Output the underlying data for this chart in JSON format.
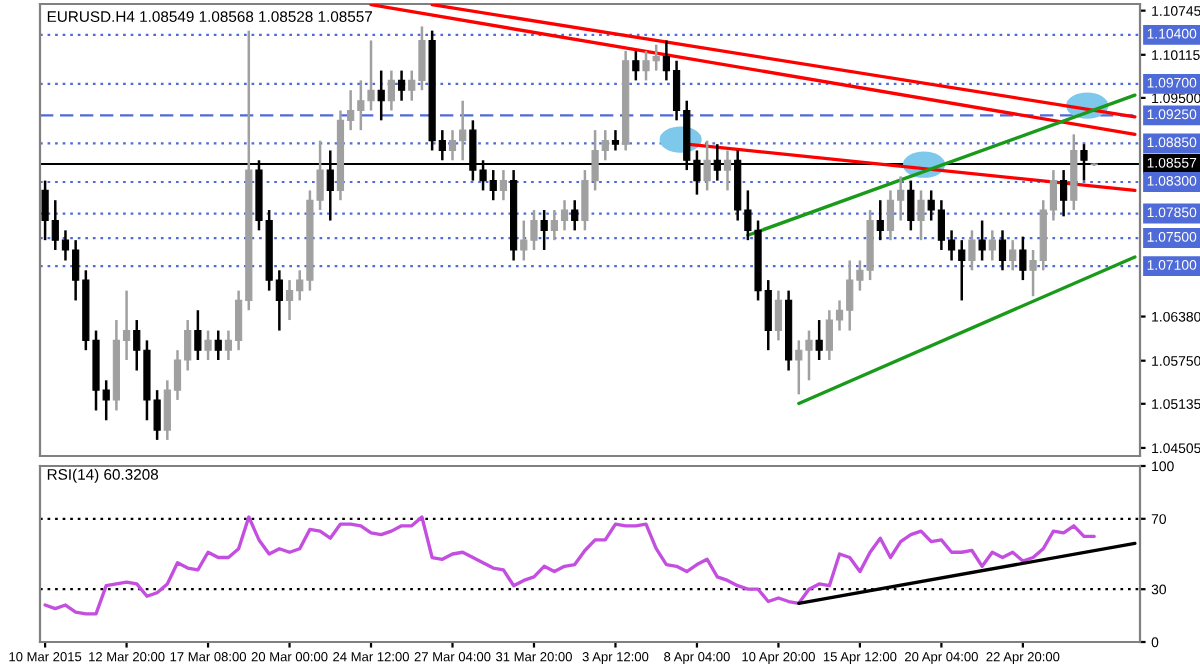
{
  "chart_data": [
    {
      "type": "candlestick",
      "title": "EURUSD.H4 1.08549 1.08568 1.08528 1.08557",
      "categories": [
        null,
        null,
        null,
        null,
        null,
        null,
        null,
        null,
        null,
        null,
        null,
        null,
        null,
        null,
        null,
        null,
        null,
        null,
        null,
        null,
        null,
        null,
        null,
        null,
        null,
        null,
        null,
        null,
        null,
        null,
        null,
        null,
        null,
        null,
        null,
        null,
        null,
        null,
        null,
        null,
        null,
        null,
        null,
        null,
        null,
        null,
        null,
        null,
        null,
        null,
        null,
        null,
        null,
        null,
        null,
        null,
        null,
        null,
        null,
        null,
        null,
        null,
        null,
        null,
        null,
        null,
        null,
        null,
        null,
        null,
        null,
        null,
        null,
        null,
        null,
        null,
        null,
        null,
        null,
        null,
        null,
        null,
        null,
        null,
        null,
        null,
        null,
        null,
        null,
        null,
        null,
        null,
        null,
        null,
        null,
        null,
        null,
        null,
        null,
        null,
        null,
        null,
        null,
        null,
        null,
        null,
        null,
        null
      ],
      "ohlc": [
        [
          1.0818,
          1.0832,
          1.0747,
          1.0775
        ],
        [
          1.0775,
          1.0804,
          1.0733,
          1.0747
        ],
        [
          1.0747,
          1.0761,
          1.0718,
          1.0733
        ],
        [
          1.0733,
          1.0747,
          1.0661,
          1.069
        ],
        [
          1.069,
          1.0704,
          1.059,
          1.0604
        ],
        [
          1.0604,
          1.0618,
          1.0504,
          1.0533
        ],
        [
          1.0533,
          1.0547,
          1.049,
          1.0519
        ],
        [
          1.0519,
          1.0633,
          1.0504,
          1.0604
        ],
        [
          1.0604,
          1.0675,
          1.0576,
          1.0618
        ],
        [
          1.0618,
          1.0633,
          1.0561,
          1.059
        ],
        [
          1.059,
          1.0604,
          1.049,
          1.0519
        ],
        [
          1.0519,
          1.0533,
          1.0462,
          1.0476
        ],
        [
          1.0476,
          1.0547,
          1.0462,
          1.0533
        ],
        [
          1.0533,
          1.059,
          1.0519,
          1.0576
        ],
        [
          1.0576,
          1.0633,
          1.0561,
          1.0618
        ],
        [
          1.0618,
          1.0647,
          1.0576,
          1.059
        ],
        [
          1.059,
          1.0618,
          1.0576,
          1.0604
        ],
        [
          1.0604,
          1.0618,
          1.0576,
          1.059
        ],
        [
          1.059,
          1.0618,
          1.0576,
          1.0604
        ],
        [
          1.0604,
          1.0675,
          1.059,
          1.0661
        ],
        [
          1.0661,
          1.1046,
          1.0647,
          1.0847
        ],
        [
          1.0847,
          1.0861,
          1.0761,
          1.0775
        ],
        [
          1.0775,
          1.079,
          1.0675,
          1.069
        ],
        [
          1.069,
          1.0704,
          1.0618,
          1.0661
        ],
        [
          1.0661,
          1.069,
          1.0633,
          1.0675
        ],
        [
          1.0675,
          1.0704,
          1.0661,
          1.069
        ],
        [
          1.069,
          1.0818,
          1.0675,
          1.0804
        ],
        [
          1.0804,
          1.0889,
          1.079,
          1.0847
        ],
        [
          1.0847,
          1.0875,
          1.0775,
          1.0818
        ],
        [
          1.0818,
          1.0932,
          1.0804,
          1.0918
        ],
        [
          1.0918,
          1.0961,
          1.0904,
          1.0932
        ],
        [
          1.0932,
          1.0975,
          1.0904,
          1.0946
        ],
        [
          1.0946,
          1.1032,
          1.0932,
          1.0961
        ],
        [
          1.0961,
          1.0989,
          1.0918,
          1.0946
        ],
        [
          1.0946,
          1.0989,
          1.0932,
          1.0975
        ],
        [
          1.0975,
          1.0989,
          1.0946,
          1.0961
        ],
        [
          1.0961,
          1.0989,
          1.0946,
          1.0975
        ],
        [
          1.0975,
          1.1052,
          1.0961,
          1.1032
        ],
        [
          1.1032,
          1.1046,
          1.0875,
          1.0889
        ],
        [
          1.0889,
          1.0904,
          1.0861,
          1.0875
        ],
        [
          1.0875,
          1.0904,
          1.0861,
          1.0889
        ],
        [
          1.0889,
          1.0946,
          1.0861,
          1.0904
        ],
        [
          1.0904,
          1.0918,
          1.0832,
          1.0847
        ],
        [
          1.0847,
          1.0861,
          1.0818,
          1.0832
        ],
        [
          1.0832,
          1.0847,
          1.0804,
          1.0818
        ],
        [
          1.0818,
          1.0847,
          1.0804,
          1.0832
        ],
        [
          1.0832,
          1.0847,
          1.0718,
          1.0733
        ],
        [
          1.0733,
          1.0775,
          1.0718,
          1.0747
        ],
        [
          1.0747,
          1.079,
          1.0733,
          1.0775
        ],
        [
          1.0775,
          1.079,
          1.0733,
          1.0761
        ],
        [
          1.0761,
          1.079,
          1.0747,
          1.0775
        ],
        [
          1.0775,
          1.0804,
          1.0761,
          1.079
        ],
        [
          1.079,
          1.0804,
          1.0761,
          1.0775
        ],
        [
          1.0775,
          1.0847,
          1.0761,
          1.0832
        ],
        [
          1.0832,
          1.0904,
          1.0818,
          1.0875
        ],
        [
          1.0875,
          1.0904,
          1.0861,
          1.0889
        ],
        [
          1.0889,
          1.0904,
          1.0875,
          1.0884
        ],
        [
          1.0884,
          1.1017,
          1.0875,
          1.1003
        ],
        [
          1.1003,
          1.1017,
          1.0975,
          1.0989
        ],
        [
          1.0989,
          1.1017,
          1.0975,
          1.1003
        ],
        [
          1.1003,
          1.1026,
          1.0989,
          1.1009
        ],
        [
          1.1009,
          1.1032,
          1.0975,
          1.0989
        ],
        [
          1.0989,
          1.1003,
          1.0918,
          1.0932
        ],
        [
          1.0932,
          1.0946,
          1.0847,
          1.0861
        ],
        [
          1.0861,
          1.0875,
          1.0812,
          1.0832
        ],
        [
          1.0832,
          1.0889,
          1.0818,
          1.0861
        ],
        [
          1.0861,
          1.0884,
          1.0832,
          1.0847
        ],
        [
          1.0847,
          1.0875,
          1.0818,
          1.0861
        ],
        [
          1.0861,
          1.0875,
          1.0775,
          1.079
        ],
        [
          1.079,
          1.0818,
          1.0747,
          1.0761
        ],
        [
          1.0761,
          1.0775,
          1.0661,
          1.0675
        ],
        [
          1.0675,
          1.069,
          1.059,
          1.0618
        ],
        [
          1.0618,
          1.0675,
          1.0604,
          1.0661
        ],
        [
          1.0661,
          1.0675,
          1.0561,
          1.0576
        ],
        [
          1.0576,
          1.0604,
          1.0527,
          1.059
        ],
        [
          1.059,
          1.0618,
          1.0547,
          1.0604
        ],
        [
          1.0604,
          1.0633,
          1.0576,
          1.059
        ],
        [
          1.059,
          1.0647,
          1.0576,
          1.0633
        ],
        [
          1.0633,
          1.0661,
          1.0618,
          1.0647
        ],
        [
          1.0647,
          1.0718,
          1.0618,
          1.069
        ],
        [
          1.069,
          1.0718,
          1.0675,
          1.0704
        ],
        [
          1.0704,
          1.079,
          1.069,
          1.0775
        ],
        [
          1.0775,
          1.0804,
          1.0747,
          1.0761
        ],
        [
          1.0761,
          1.0818,
          1.0747,
          1.0804
        ],
        [
          1.0804,
          1.0838,
          1.0775,
          1.0818
        ],
        [
          1.0818,
          1.0832,
          1.0761,
          1.0775
        ],
        [
          1.0775,
          1.0818,
          1.0747,
          1.0804
        ],
        [
          1.0804,
          1.0818,
          1.0775,
          1.079
        ],
        [
          1.079,
          1.0804,
          1.0733,
          1.0747
        ],
        [
          1.0747,
          1.0761,
          1.0718,
          1.0733
        ],
        [
          1.0733,
          1.0747,
          1.0661,
          1.0718
        ],
        [
          1.0718,
          1.0761,
          1.0704,
          1.0747
        ],
        [
          1.0747,
          1.0775,
          1.0718,
          1.0733
        ],
        [
          1.0733,
          1.0761,
          1.0718,
          1.0747
        ],
        [
          1.0747,
          1.0761,
          1.0704,
          1.0718
        ],
        [
          1.0718,
          1.0747,
          1.0704,
          1.0733
        ],
        [
          1.0733,
          1.0752,
          1.069,
          1.0704
        ],
        [
          1.0704,
          1.0733,
          1.0667,
          1.0718
        ],
        [
          1.0718,
          1.0804,
          1.0704,
          1.079
        ],
        [
          1.079,
          1.0847,
          1.0775,
          1.0832
        ],
        [
          1.0832,
          1.0847,
          1.0781,
          1.0804
        ],
        [
          1.0804,
          1.0898,
          1.079,
          1.0875
        ],
        [
          1.0875,
          1.0884,
          1.0832,
          1.0861
        ],
        [
          1.08549,
          1.08568,
          1.08528,
          1.08557
        ],
        null,
        null,
        null,
        null
      ],
      "colors": [
        "#000000",
        "#000000",
        "#000000",
        "#000000",
        "#000000",
        "#000000",
        "#000000",
        "#a0a0a0",
        "#a0a0a0",
        "#000000",
        "#000000",
        "#000000",
        "#a0a0a0",
        "#a0a0a0",
        "#a0a0a0",
        "#000000",
        "#a0a0a0",
        "#000000",
        "#a0a0a0",
        "#a0a0a0",
        "#a0a0a0",
        "#000000",
        "#000000",
        "#000000",
        "#a0a0a0",
        "#a0a0a0",
        "#a0a0a0",
        "#a0a0a0",
        "#000000",
        "#a0a0a0",
        "#a0a0a0",
        "#a0a0a0",
        "#a0a0a0",
        "#000000",
        "#a0a0a0",
        "#000000",
        "#a0a0a0",
        "#a0a0a0",
        "#000000",
        "#000000",
        "#a0a0a0",
        "#a0a0a0",
        "#000000",
        "#000000",
        "#000000",
        "#a0a0a0",
        "#000000",
        "#a0a0a0",
        "#a0a0a0",
        "#000000",
        "#a0a0a0",
        "#a0a0a0",
        "#000000",
        "#a0a0a0",
        "#a0a0a0",
        "#a0a0a0",
        "#000000",
        "#a0a0a0",
        "#000000",
        "#a0a0a0",
        "#a0a0a0",
        "#000000",
        "#000000",
        "#000000",
        "#000000",
        "#a0a0a0",
        "#000000",
        "#a0a0a0",
        "#000000",
        "#000000",
        "#000000",
        "#000000",
        "#a0a0a0",
        "#000000",
        "#a0a0a0",
        "#a0a0a0",
        "#000000",
        "#a0a0a0",
        "#a0a0a0",
        "#a0a0a0",
        "#a0a0a0",
        "#a0a0a0",
        "#000000",
        "#a0a0a0",
        "#a0a0a0",
        "#000000",
        "#a0a0a0",
        "#000000",
        "#000000",
        "#000000",
        "#000000",
        "#a0a0a0",
        "#000000",
        "#a0a0a0",
        "#000000",
        "#a0a0a0",
        "#000000",
        "#a0a0a0",
        "#a0a0a0",
        "#a0a0a0",
        "#000000",
        "#a0a0a0",
        "#000000",
        "#a0a0a0",
        null,
        null,
        null,
        null
      ],
      "series": [
        {
          "type": "line",
          "color": "#ff0000",
          "values": [
            null,
            null,
            null,
            null,
            null,
            null,
            null,
            null,
            null,
            null,
            null,
            null,
            null,
            null,
            null,
            null,
            null,
            null,
            null,
            null,
            null,
            null,
            null,
            null,
            null,
            null,
            null,
            null,
            null,
            null,
            null,
            null,
            null,
            null,
            null,
            null,
            null,
            null,
            1.1083,
            null,
            null,
            null,
            null,
            null,
            null,
            null,
            null,
            null,
            null,
            null,
            null,
            null,
            null,
            null,
            null,
            null,
            null,
            null,
            null,
            null,
            null,
            null,
            null,
            null,
            null,
            null,
            null,
            null,
            null,
            null,
            null,
            null,
            null,
            null,
            null,
            null,
            null,
            null,
            null,
            null,
            null,
            null,
            null,
            null,
            null,
            null,
            null,
            null,
            null,
            null,
            null,
            null,
            null,
            null,
            null,
            null,
            null,
            null,
            null,
            null,
            null,
            null,
            null,
            null,
            null,
            null,
            null,
            1.0923
          ]
        },
        {
          "type": "line",
          "color": "#ff0000",
          "values": [
            null,
            null,
            null,
            null,
            null,
            null,
            null,
            null,
            null,
            null,
            null,
            null,
            null,
            null,
            null,
            null,
            null,
            null,
            null,
            null,
            null,
            null,
            null,
            null,
            null,
            null,
            null,
            null,
            null,
            null,
            null,
            null,
            1.1083,
            null,
            null,
            null,
            null,
            null,
            null,
            null,
            null,
            null,
            null,
            null,
            null,
            null,
            null,
            null,
            null,
            null,
            null,
            null,
            null,
            null,
            null,
            null,
            null,
            null,
            null,
            null,
            null,
            null,
            null,
            null,
            null,
            null,
            null,
            null,
            null,
            null,
            null,
            null,
            null,
            null,
            null,
            null,
            null,
            null,
            null,
            null,
            null,
            null,
            null,
            null,
            null,
            null,
            null,
            null,
            null,
            null,
            null,
            null,
            null,
            null,
            null,
            null,
            null,
            null,
            null,
            null,
            null,
            null,
            null,
            null,
            null,
            null,
            null,
            1.0898
          ]
        },
        {
          "type": "line",
          "color": "#ff0000",
          "values": [
            null,
            null,
            null,
            null,
            null,
            null,
            null,
            null,
            null,
            null,
            null,
            null,
            null,
            null,
            null,
            null,
            null,
            null,
            null,
            null,
            null,
            null,
            null,
            null,
            null,
            null,
            null,
            null,
            null,
            null,
            null,
            null,
            null,
            null,
            null,
            null,
            null,
            null,
            null,
            null,
            null,
            null,
            null,
            null,
            null,
            null,
            null,
            null,
            null,
            null,
            null,
            null,
            null,
            null,
            null,
            null,
            null,
            null,
            null,
            null,
            null,
            null,
            null,
            1.0884,
            null,
            null,
            null,
            null,
            null,
            null,
            null,
            null,
            null,
            null,
            null,
            null,
            null,
            null,
            null,
            null,
            null,
            null,
            null,
            null,
            null,
            null,
            null,
            null,
            null,
            null,
            null,
            null,
            null,
            null,
            null,
            null,
            null,
            null,
            null,
            null,
            null,
            null,
            null,
            null,
            null,
            null,
            null,
            1.0818
          ]
        },
        {
          "type": "line",
          "color": "#1a9a1a",
          "values": [
            null,
            null,
            null,
            null,
            null,
            null,
            null,
            null,
            null,
            null,
            null,
            null,
            null,
            null,
            null,
            null,
            null,
            null,
            null,
            null,
            null,
            null,
            null,
            null,
            null,
            null,
            null,
            null,
            null,
            null,
            null,
            null,
            null,
            null,
            null,
            null,
            null,
            null,
            null,
            null,
            null,
            null,
            null,
            null,
            null,
            null,
            null,
            null,
            null,
            null,
            null,
            null,
            null,
            null,
            null,
            null,
            null,
            null,
            null,
            null,
            null,
            null,
            null,
            null,
            null,
            null,
            null,
            null,
            null,
            1.0754,
            null,
            null,
            null,
            null,
            null,
            null,
            null,
            null,
            null,
            null,
            null,
            null,
            null,
            null,
            null,
            null,
            null,
            null,
            null,
            null,
            null,
            null,
            null,
            null,
            null,
            null,
            null,
            null,
            null,
            null,
            null,
            null,
            null,
            null,
            null,
            null,
            null,
            1.0954
          ]
        },
        {
          "type": "line",
          "color": "#1a9a1a",
          "values": [
            null,
            null,
            null,
            null,
            null,
            null,
            null,
            null,
            null,
            null,
            null,
            null,
            null,
            null,
            null,
            null,
            null,
            null,
            null,
            null,
            null,
            null,
            null,
            null,
            null,
            null,
            null,
            null,
            null,
            null,
            null,
            null,
            null,
            null,
            null,
            null,
            null,
            null,
            null,
            null,
            null,
            null,
            null,
            null,
            null,
            null,
            null,
            null,
            null,
            null,
            null,
            null,
            null,
            null,
            null,
            null,
            null,
            null,
            null,
            null,
            null,
            null,
            null,
            null,
            null,
            null,
            null,
            null,
            null,
            null,
            null,
            null,
            null,
            null,
            1.0514,
            null,
            null,
            null,
            null,
            null,
            null,
            null,
            null,
            null,
            null,
            null,
            null,
            null,
            null,
            null,
            null,
            null,
            null,
            null,
            null,
            null,
            null,
            null,
            null,
            null,
            null,
            null,
            null,
            null,
            null,
            null,
            null,
            1.0723
          ]
        }
      ],
      "ylim": [
        1.0439,
        1.1084
      ],
      "yticks": [
        {
          "value": 1.10745,
          "label": "1.10745"
        },
        {
          "value": 1.10115,
          "label": "1.10115"
        },
        {
          "value": 1.095,
          "label": "1.09500"
        },
        {
          "value": 1.0638,
          "label": "1.06380"
        },
        {
          "value": 1.0575,
          "label": "1.05750"
        },
        {
          "value": 1.05135,
          "label": "1.05135"
        },
        {
          "value": 1.04505,
          "label": "1.04505"
        }
      ],
      "ref_lines": [
        {
          "axis": "y",
          "value": 1.104,
          "label": "1.10400",
          "color": "#4f6bd8",
          "line_style": "dotted"
        },
        {
          "axis": "y",
          "value": 1.097,
          "label": "1.09700",
          "color": "#4f6bd8",
          "line_style": "dotted"
        },
        {
          "axis": "y",
          "value": 1.0925,
          "label": "1.09250",
          "color": "#4f6bd8",
          "line_style": "dashed"
        },
        {
          "axis": "y",
          "value": 1.0885,
          "label": "1.08850",
          "color": "#4f6bd8",
          "line_style": "dotted"
        },
        {
          "axis": "y",
          "value": 1.08557,
          "label": "1.08557",
          "color": "#000000",
          "line_style": "solid"
        },
        {
          "axis": "y",
          "value": 1.083,
          "label": "1.08300",
          "color": "#4f6bd8",
          "line_style": "dotted"
        },
        {
          "axis": "y",
          "value": 1.0785,
          "label": "1.07850",
          "color": "#4f6bd8",
          "line_style": "dotted"
        },
        {
          "axis": "y",
          "value": 1.075,
          "label": "1.07500",
          "color": "#4f6bd8",
          "line_style": "dotted"
        },
        {
          "axis": "y",
          "value": 1.071,
          "label": "1.07100",
          "color": "#4f6bd8",
          "line_style": "dotted"
        }
      ],
      "tick_labels": "y"
    },
    {
      "type": "line",
      "title": "RSI(14) 60.3208",
      "categories": [
        "10 Mar 2015",
        null,
        null,
        null,
        null,
        null,
        null,
        null,
        "12 Mar 20:00",
        null,
        null,
        null,
        null,
        null,
        null,
        null,
        "17 Mar 08:00",
        null,
        null,
        null,
        null,
        null,
        null,
        null,
        "20 Mar 00:00",
        null,
        null,
        null,
        null,
        null,
        null,
        null,
        "24 Mar 12:00",
        null,
        null,
        null,
        null,
        null,
        null,
        null,
        "27 Mar 04:00",
        null,
        null,
        null,
        null,
        null,
        null,
        null,
        "31 Mar 20:00",
        null,
        null,
        null,
        null,
        null,
        null,
        null,
        "3 Apr 12:00",
        null,
        null,
        null,
        null,
        null,
        null,
        null,
        "8 Apr 04:00",
        null,
        null,
        null,
        null,
        null,
        null,
        null,
        "10 Apr 20:00",
        null,
        null,
        null,
        null,
        null,
        null,
        null,
        "15 Apr 12:00",
        null,
        null,
        null,
        null,
        null,
        null,
        null,
        "20 Apr 04:00",
        null,
        null,
        null,
        null,
        null,
        null,
        null,
        "22 Apr 20:00",
        null,
        null,
        null,
        null,
        null,
        null,
        null,
        null,
        null,
        null,
        null
      ],
      "series": [
        {
          "color": "#c34ee0",
          "values": [
            21,
            19,
            21,
            17,
            16,
            16,
            32,
            33,
            34,
            33,
            26,
            28,
            33,
            45,
            42,
            41,
            51,
            48,
            48,
            53,
            71,
            58,
            50,
            53,
            51,
            53,
            64,
            63,
            59,
            67,
            67,
            66,
            62,
            61,
            63,
            66,
            66,
            71,
            48,
            47,
            50,
            51,
            48,
            45,
            42,
            41,
            32,
            35,
            37,
            43,
            40,
            43,
            44,
            52,
            58,
            58,
            67,
            66,
            66,
            67,
            53,
            44,
            43,
            40,
            44,
            47,
            37,
            35,
            32,
            30,
            30,
            23,
            25,
            23,
            22,
            30,
            33,
            32,
            50,
            48,
            40,
            51,
            59,
            48,
            57,
            61,
            63,
            57,
            58,
            51,
            51,
            52,
            43,
            51,
            48,
            51,
            46,
            48,
            53,
            63,
            62,
            66,
            60,
            60,
            null,
            null,
            null,
            null
          ]
        },
        {
          "color": "#000000",
          "values": [
            null,
            null,
            null,
            null,
            null,
            null,
            null,
            null,
            null,
            null,
            null,
            null,
            null,
            null,
            null,
            null,
            null,
            null,
            null,
            null,
            null,
            null,
            null,
            null,
            null,
            null,
            null,
            null,
            null,
            null,
            null,
            null,
            null,
            null,
            null,
            null,
            null,
            null,
            null,
            null,
            null,
            null,
            null,
            null,
            null,
            null,
            null,
            null,
            null,
            null,
            null,
            null,
            null,
            null,
            null,
            null,
            null,
            null,
            null,
            null,
            null,
            null,
            null,
            null,
            null,
            null,
            null,
            null,
            null,
            null,
            null,
            null,
            null,
            null,
            22,
            null,
            null,
            null,
            null,
            null,
            null,
            null,
            null,
            null,
            null,
            null,
            null,
            null,
            null,
            null,
            null,
            null,
            null,
            null,
            null,
            null,
            null,
            null,
            null,
            null,
            null,
            null,
            null,
            null,
            null,
            null,
            null,
            56
          ]
        }
      ],
      "ylim": [
        0,
        100
      ],
      "yticks": [
        0,
        30,
        70,
        100
      ],
      "ref_lines": [
        {
          "axis": "y",
          "value": 70,
          "color": "#000000",
          "line_style": "dotted"
        },
        {
          "axis": "y",
          "value": 30,
          "color": "#000000",
          "line_style": "dotted"
        }
      ]
    }
  ]
}
